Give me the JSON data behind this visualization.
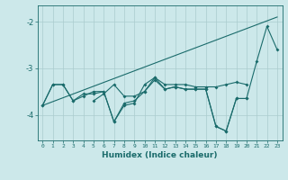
{
  "xlabel": "Humidex (Indice chaleur)",
  "x": [
    0,
    1,
    2,
    3,
    4,
    5,
    6,
    7,
    8,
    9,
    10,
    11,
    12,
    13,
    14,
    15,
    16,
    17,
    18,
    19,
    20,
    21,
    22,
    23
  ],
  "line1_y": [
    -3.8,
    -3.35,
    -3.35,
    -3.7,
    -3.6,
    -3.5,
    -3.5,
    -4.15,
    -3.8,
    -3.75,
    -3.35,
    -3.2,
    -3.35,
    -3.35,
    -3.35,
    -3.4,
    -3.4,
    -3.4,
    -3.35,
    -3.3,
    -3.35,
    null,
    null,
    null
  ],
  "line2_y": [
    null,
    null,
    null,
    null,
    null,
    -3.7,
    -3.55,
    -3.35,
    -3.6,
    -3.6,
    -3.5,
    -3.25,
    -3.45,
    -3.4,
    -3.45,
    -3.45,
    -3.45,
    -4.25,
    -4.35,
    -3.65,
    -3.65,
    null,
    null,
    null
  ],
  "line3_y": [
    -3.8,
    -3.35,
    -3.35,
    -3.7,
    -3.55,
    -3.55,
    -3.5,
    -4.15,
    -3.75,
    -3.7,
    -3.5,
    -3.2,
    -3.45,
    -3.4,
    -3.45,
    -3.45,
    -3.45,
    -4.25,
    -4.35,
    -3.65,
    -3.65,
    -2.85,
    -2.1,
    -2.6
  ],
  "line4_x": [
    0,
    23
  ],
  "line4_y": [
    -3.8,
    -1.9
  ],
  "background_color": "#cce8ea",
  "grid_color": "#aaccce",
  "line_color": "#1a6b6b",
  "ylim": [
    -4.55,
    -1.65
  ],
  "yticks": [
    -4,
    -3,
    -2
  ],
  "xlim": [
    -0.5,
    23.5
  ],
  "marker_size": 2.0,
  "line_width": 0.8
}
